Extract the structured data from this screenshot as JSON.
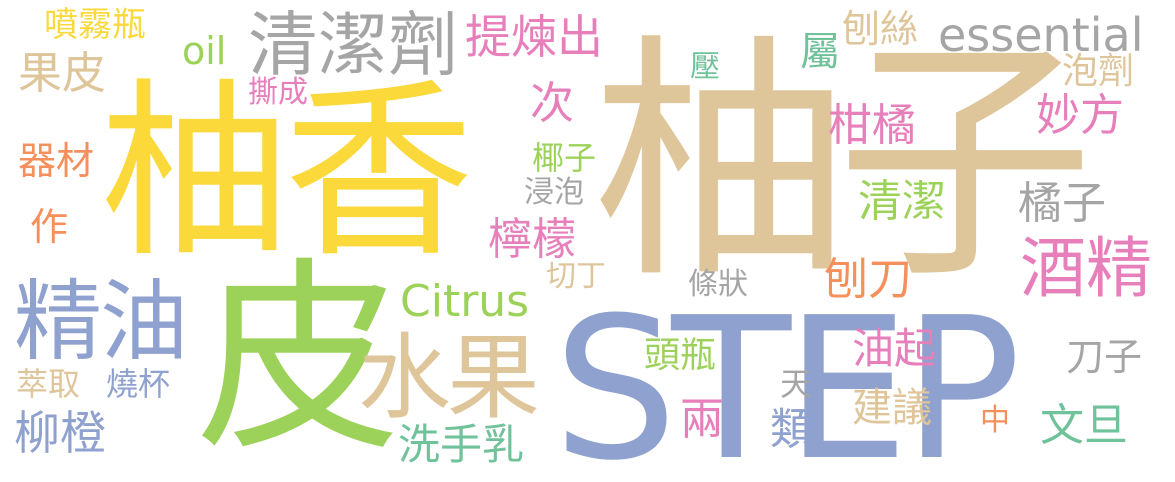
{
  "palette": {
    "tan": "#dfc59a",
    "yellow": "#fbd93a",
    "green": "#9dd25a",
    "blue": "#8fa1cf",
    "gray": "#a5a5a5",
    "orange": "#f5905c",
    "pink": "#e77fbb",
    "teal": "#6fc29a"
  },
  "words": [
    {
      "id": "w-youzi",
      "text": "柚子",
      "color": "tan"
    },
    {
      "id": "w-youxiang",
      "text": "柚香",
      "color": "yellow"
    },
    {
      "id": "w-pi",
      "text": "皮",
      "color": "green"
    },
    {
      "id": "w-step",
      "text": "STEP",
      "color": "blue"
    },
    {
      "id": "w-shuiguo",
      "text": "水果",
      "color": "tan"
    },
    {
      "id": "w-jingyou",
      "text": "精油",
      "color": "blue"
    },
    {
      "id": "w-qingjieji",
      "text": "清潔劑",
      "color": "gray"
    },
    {
      "id": "w-essential",
      "text": "essential",
      "color": "gray"
    },
    {
      "id": "w-jiujing",
      "text": "酒精",
      "color": "pink"
    },
    {
      "id": "w-citrus",
      "text": "Citrus",
      "color": "green"
    },
    {
      "id": "w-tilianchu",
      "text": "提煉出",
      "color": "pink"
    },
    {
      "id": "w-guopi",
      "text": "果皮",
      "color": "tan"
    },
    {
      "id": "w-oil",
      "text": "oil",
      "color": "green"
    },
    {
      "id": "w-penwuping",
      "text": "噴霧瓶",
      "color": "yellow"
    },
    {
      "id": "w-ganju",
      "text": "柑橘",
      "color": "pink"
    },
    {
      "id": "w-qingjie",
      "text": "清潔",
      "color": "green"
    },
    {
      "id": "w-juzi",
      "text": "橘子",
      "color": "gray"
    },
    {
      "id": "w-ningmeng",
      "text": "檸檬",
      "color": "pink"
    },
    {
      "id": "w-miaofang",
      "text": "妙方",
      "color": "pink"
    },
    {
      "id": "w-paoji",
      "text": "泡劑",
      "color": "tan"
    },
    {
      "id": "w-baosi",
      "text": "刨絲",
      "color": "tan"
    },
    {
      "id": "w-shu",
      "text": "屬",
      "color": "teal"
    },
    {
      "id": "w-ya",
      "text": "壓",
      "color": "teal"
    },
    {
      "id": "w-sicheng",
      "text": "撕成",
      "color": "pink"
    },
    {
      "id": "w-ci",
      "text": "次",
      "color": "pink"
    },
    {
      "id": "w-yezi",
      "text": "椰子",
      "color": "green"
    },
    {
      "id": "w-jinpao",
      "text": "浸泡",
      "color": "gray"
    },
    {
      "id": "w-qieding",
      "text": "切丁",
      "color": "tan"
    },
    {
      "id": "w-tiaozhuang",
      "text": "條狀",
      "color": "gray"
    },
    {
      "id": "w-baodao",
      "text": "刨刀",
      "color": "orange"
    },
    {
      "id": "w-qicai",
      "text": "器材",
      "color": "orange"
    },
    {
      "id": "w-zuo",
      "text": "作",
      "color": "orange"
    },
    {
      "id": "w-cuiqu",
      "text": "萃取",
      "color": "tan"
    },
    {
      "id": "w-shaobei",
      "text": "燒杯",
      "color": "blue"
    },
    {
      "id": "w-liucheng",
      "text": "柳橙",
      "color": "blue"
    },
    {
      "id": "w-touping",
      "text": "頭瓶",
      "color": "green"
    },
    {
      "id": "w-youqi",
      "text": "油起",
      "color": "pink"
    },
    {
      "id": "w-daozi",
      "text": "刀子",
      "color": "gray"
    },
    {
      "id": "w-tian",
      "text": "天",
      "color": "gray"
    },
    {
      "id": "w-jianyi",
      "text": "建議",
      "color": "tan"
    },
    {
      "id": "w-liang",
      "text": "兩",
      "color": "pink"
    },
    {
      "id": "w-lei",
      "text": "類",
      "color": "blue"
    },
    {
      "id": "w-xishouru",
      "text": "洗手乳",
      "color": "teal"
    },
    {
      "id": "w-zhong",
      "text": "中",
      "color": "orange"
    },
    {
      "id": "w-wendan",
      "text": "文旦",
      "color": "teal"
    }
  ]
}
